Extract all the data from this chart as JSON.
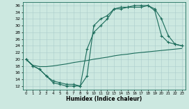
{
  "xlabel": "Humidex (Indice chaleur)",
  "ylabel": "",
  "background_color": "#cce8e0",
  "line_color": "#1a6b5a",
  "grid_color": "#aacccc",
  "xlim": [
    -0.5,
    23.5
  ],
  "ylim": [
    11,
    37
  ],
  "yticks": [
    12,
    14,
    16,
    18,
    20,
    22,
    24,
    26,
    28,
    30,
    32,
    34,
    36
  ],
  "xticks": [
    0,
    1,
    2,
    3,
    4,
    5,
    6,
    7,
    8,
    9,
    10,
    11,
    12,
    13,
    14,
    15,
    16,
    17,
    18,
    19,
    20,
    21,
    22,
    23
  ],
  "line1_x": [
    0,
    1,
    2,
    3,
    4,
    5,
    6,
    7,
    8,
    9,
    10,
    11,
    12,
    13,
    14,
    15,
    16,
    17,
    18,
    19,
    20,
    21,
    22,
    23
  ],
  "line1_y": [
    20,
    18,
    17,
    15,
    13.5,
    13,
    12.5,
    12.5,
    12,
    23,
    28,
    30,
    32,
    35,
    35.5,
    35.5,
    36,
    36,
    36,
    34.5,
    27,
    25,
    24.5,
    24
  ],
  "line2_x": [
    0,
    1,
    2,
    3,
    4,
    5,
    6,
    7,
    8,
    9,
    10,
    11,
    12,
    13,
    14,
    15,
    16,
    17,
    18,
    19,
    20,
    21,
    22,
    23
  ],
  "line2_y": [
    20,
    18,
    17,
    15,
    13,
    12.5,
    12,
    12,
    12,
    15,
    30,
    32,
    33,
    35,
    35,
    35.5,
    35.5,
    35.5,
    36,
    35,
    32,
    27,
    24.5,
    24
  ],
  "line3_x": [
    0,
    1,
    2,
    3,
    4,
    5,
    6,
    7,
    8,
    9,
    10,
    11,
    12,
    13,
    14,
    15,
    16,
    17,
    18,
    19,
    20,
    21,
    22,
    23
  ],
  "line3_y": [
    20,
    18.2,
    17.8,
    17.8,
    18,
    18.3,
    18.6,
    19,
    19.3,
    19.6,
    20,
    20.3,
    20.6,
    21,
    21.3,
    21.5,
    21.8,
    22,
    22.2,
    22.4,
    22.6,
    22.8,
    23,
    23.2
  ]
}
